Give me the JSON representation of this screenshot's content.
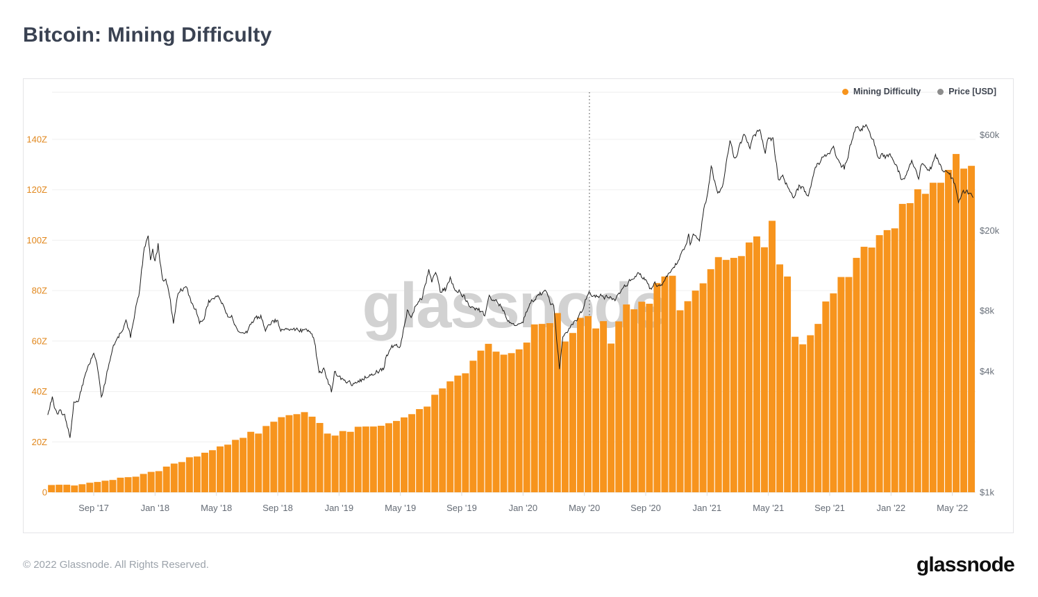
{
  "header": {
    "title": "Bitcoin: Mining Difficulty"
  },
  "legend": {
    "items": [
      {
        "id": "mining-difficulty",
        "label": "Mining Difficulty",
        "color": "#F7941D"
      },
      {
        "id": "price-usd",
        "label": "Price [USD]",
        "color": "#8C8C8C"
      }
    ]
  },
  "watermark": {
    "text": "glassnode",
    "color": "#D2D2D2"
  },
  "footer": {
    "copyright": "© 2022 Glassnode. All Rights Reserved.",
    "brand": "glassnode"
  },
  "chart_data": {
    "type": "combo",
    "title": "Bitcoin: Mining Difficulty",
    "grid": true,
    "legend_position": "top-right",
    "x_axis": {
      "start": "2017-06-01",
      "end": "2022-06-12",
      "tick_labels": [
        "Sep '17",
        "Jan '18",
        "May '18",
        "Sep '18",
        "Jan '19",
        "May '19",
        "Sep '19",
        "Jan '20",
        "May '20",
        "Sep '20",
        "Jan '21",
        "May '21",
        "Sep '21",
        "Jan '22",
        "May '22"
      ],
      "tick_month_offsets": [
        3,
        7,
        11,
        15,
        19,
        23,
        27,
        31,
        35,
        39,
        43,
        47,
        51,
        55,
        59
      ]
    },
    "y_left_axis": {
      "series": "Mining Difficulty",
      "unit": "Z",
      "tick_values": [
        0,
        20,
        40,
        60,
        80,
        100,
        120,
        140
      ],
      "tick_labels": [
        "0",
        "20Z",
        "40Z",
        "60Z",
        "80Z",
        "100Z",
        "120Z",
        "140Z"
      ],
      "range_z": [
        0,
        158
      ],
      "label_color": "#E1871C"
    },
    "y_right_axis": {
      "series": "Price [USD]",
      "scale": "log",
      "tick_values": [
        1000,
        4000,
        8000,
        20000,
        60000
      ],
      "tick_labels": [
        "$1k",
        "$4k",
        "$8k",
        "$20k",
        "$60k"
      ],
      "label_color": "#69707A"
    },
    "annotations": {
      "halving_line": {
        "month_offset": 35.33,
        "date": "2020-05-11",
        "style": "dotted-vertical"
      }
    },
    "series": [
      {
        "name": "Mining Difficulty",
        "type": "bar",
        "axis": "left",
        "unit": "Z",
        "color": "#F7941D",
        "cadence": "semi-monthly from 2017-06-01",
        "values": [
          2.9,
          3.0,
          3.0,
          2.7,
          3.2,
          3.8,
          4.1,
          4.6,
          4.9,
          5.8,
          6.0,
          6.2,
          7.3,
          8.1,
          8.4,
          10.2,
          11.4,
          12.0,
          13.9,
          14.2,
          15.7,
          16.7,
          18.2,
          18.9,
          20.8,
          21.6,
          24.0,
          23.3,
          26.3,
          28.0,
          29.8,
          30.6,
          31.0,
          31.8,
          30.0,
          27.5,
          23.3,
          22.5,
          24.3,
          24.0,
          26.0,
          26.1,
          26.1,
          26.4,
          27.4,
          28.3,
          29.7,
          31.0,
          33.0,
          34.0,
          38.7,
          41.2,
          44.0,
          46.3,
          47.2,
          52.2,
          56.2,
          58.9,
          55.8,
          54.6,
          55.2,
          56.7,
          59.4,
          66.6,
          66.8,
          67.1,
          71.1,
          59.8,
          63.2,
          69.2,
          69.9,
          65.0,
          67.9,
          59.0,
          67.8,
          74.5,
          72.6,
          75.6,
          74.8,
          83.0,
          85.6,
          85.9,
          72.2,
          75.8,
          80.0,
          82.9,
          88.5,
          93.3,
          92.2,
          93.0,
          93.7,
          99.1,
          101.5,
          97.2,
          107.7,
          90.4,
          85.6,
          61.7,
          58.7,
          62.3,
          66.8,
          75.7,
          78.9,
          85.4,
          85.4,
          93.0,
          97.4,
          97.1,
          102.0,
          104.0,
          104.7,
          114.4,
          114.7,
          120.2,
          118.4,
          122.8,
          122.8,
          127.9,
          134.2,
          128.4,
          129.5
        ]
      },
      {
        "name": "Price [USD]",
        "type": "line",
        "axis": "right-log",
        "unit": "USD",
        "color": "#1B1B1B",
        "points": [
          [
            0,
            2400
          ],
          [
            0.3,
            2950
          ],
          [
            0.5,
            2550
          ],
          [
            0.8,
            2500
          ],
          [
            1.1,
            2400
          ],
          [
            1.45,
            1900
          ],
          [
            1.7,
            2750
          ],
          [
            2.0,
            2850
          ],
          [
            2.3,
            3500
          ],
          [
            2.6,
            4100
          ],
          [
            3.0,
            4900
          ],
          [
            3.2,
            4350
          ],
          [
            3.5,
            3000
          ],
          [
            3.8,
            3650
          ],
          [
            4.0,
            4350
          ],
          [
            4.4,
            5600
          ],
          [
            4.8,
            6200
          ],
          [
            5.1,
            7100
          ],
          [
            5.4,
            5900
          ],
          [
            5.7,
            8000
          ],
          [
            6.0,
            10200
          ],
          [
            6.3,
            16700
          ],
          [
            6.55,
            19400
          ],
          [
            6.7,
            14300
          ],
          [
            6.85,
            16200
          ],
          [
            7.0,
            13900
          ],
          [
            7.2,
            16900
          ],
          [
            7.5,
            11100
          ],
          [
            7.7,
            11700
          ],
          [
            8.0,
            9000
          ],
          [
            8.2,
            6900
          ],
          [
            8.5,
            9800
          ],
          [
            8.8,
            10400
          ],
          [
            9.0,
            10900
          ],
          [
            9.3,
            9000
          ],
          [
            9.6,
            8200
          ],
          [
            9.9,
            7000
          ],
          [
            10.2,
            7400
          ],
          [
            10.5,
            8900
          ],
          [
            10.8,
            9300
          ],
          [
            11.1,
            9200
          ],
          [
            11.4,
            8500
          ],
          [
            11.8,
            7400
          ],
          [
            12.0,
            7550
          ],
          [
            12.3,
            6500
          ],
          [
            12.7,
            6100
          ],
          [
            13.0,
            6350
          ],
          [
            13.5,
            7400
          ],
          [
            13.9,
            7500
          ],
          [
            14.2,
            6400
          ],
          [
            14.6,
            7000
          ],
          [
            15.0,
            7200
          ],
          [
            15.2,
            6300
          ],
          [
            15.6,
            6500
          ],
          [
            16.0,
            6550
          ],
          [
            16.5,
            6450
          ],
          [
            17.0,
            6350
          ],
          [
            17.4,
            5700
          ],
          [
            17.7,
            3900
          ],
          [
            18.0,
            4100
          ],
          [
            18.5,
            3200
          ],
          [
            18.7,
            3900
          ],
          [
            19.0,
            3750
          ],
          [
            19.5,
            3550
          ],
          [
            20.0,
            3450
          ],
          [
            20.5,
            3650
          ],
          [
            21.0,
            3850
          ],
          [
            21.5,
            3980
          ],
          [
            21.9,
            4100
          ],
          [
            22.1,
            4900
          ],
          [
            22.5,
            5250
          ],
          [
            23.0,
            5350
          ],
          [
            23.45,
            7950
          ],
          [
            23.7,
            7300
          ],
          [
            24.0,
            8550
          ],
          [
            24.4,
            9200
          ],
          [
            24.85,
            12900
          ],
          [
            25.05,
            11200
          ],
          [
            25.3,
            12500
          ],
          [
            25.6,
            10000
          ],
          [
            26.0,
            10300
          ],
          [
            26.25,
            11900
          ],
          [
            26.6,
            10100
          ],
          [
            27.0,
            9700
          ],
          [
            27.7,
            8200
          ],
          [
            28.0,
            8300
          ],
          [
            28.5,
            7600
          ],
          [
            28.8,
            9450
          ],
          [
            29.0,
            9150
          ],
          [
            29.5,
            8550
          ],
          [
            30.0,
            7300
          ],
          [
            30.5,
            6700
          ],
          [
            31.0,
            7200
          ],
          [
            31.5,
            8750
          ],
          [
            32.0,
            9350
          ],
          [
            32.4,
            10300
          ],
          [
            32.8,
            8800
          ],
          [
            33.0,
            8600
          ],
          [
            33.37,
            4100
          ],
          [
            33.6,
            5900
          ],
          [
            34.0,
            6450
          ],
          [
            34.5,
            7100
          ],
          [
            35.0,
            8650
          ],
          [
            35.3,
            9850
          ],
          [
            35.6,
            9300
          ],
          [
            36.0,
            9600
          ],
          [
            36.5,
            9350
          ],
          [
            37.0,
            9150
          ],
          [
            37.8,
            10900
          ],
          [
            38.0,
            11300
          ],
          [
            38.55,
            12200
          ],
          [
            39.0,
            11650
          ],
          [
            39.25,
            10300
          ],
          [
            39.6,
            10800
          ],
          [
            40.0,
            10650
          ],
          [
            40.7,
            12900
          ],
          [
            41.0,
            13800
          ],
          [
            41.5,
            16200
          ],
          [
            41.8,
            19000
          ],
          [
            41.9,
            17200
          ],
          [
            42.1,
            19300
          ],
          [
            42.5,
            18100
          ],
          [
            42.85,
            26500
          ],
          [
            43.0,
            29000
          ],
          [
            43.27,
            41200
          ],
          [
            43.5,
            35500
          ],
          [
            43.7,
            31000
          ],
          [
            44.0,
            33500
          ],
          [
            44.5,
            56300
          ],
          [
            44.8,
            45500
          ],
          [
            45.0,
            49600
          ],
          [
            45.4,
            61000
          ],
          [
            45.8,
            51800
          ],
          [
            46.0,
            58800
          ],
          [
            46.45,
            63500
          ],
          [
            46.8,
            49500
          ],
          [
            47.0,
            57800
          ],
          [
            47.3,
            57500
          ],
          [
            47.65,
            36800
          ],
          [
            48.0,
            36700
          ],
          [
            48.7,
            29200
          ],
          [
            49.0,
            33500
          ],
          [
            49.6,
            30000
          ],
          [
            50.0,
            39900
          ],
          [
            50.5,
            46000
          ],
          [
            51.0,
            48800
          ],
          [
            51.25,
            52500
          ],
          [
            51.45,
            44800
          ],
          [
            51.7,
            42800
          ],
          [
            51.95,
            41200
          ],
          [
            52.2,
            47500
          ],
          [
            52.7,
            66600
          ],
          [
            53.0,
            61300
          ],
          [
            53.3,
            68400
          ],
          [
            53.8,
            57200
          ],
          [
            54.1,
            47500
          ],
          [
            54.5,
            46900
          ],
          [
            55.0,
            47100
          ],
          [
            55.4,
            41700
          ],
          [
            55.7,
            35200
          ],
          [
            56.0,
            38500
          ],
          [
            56.35,
            44300
          ],
          [
            56.8,
            35800
          ],
          [
            57.0,
            43200
          ],
          [
            57.5,
            39200
          ],
          [
            57.9,
            47200
          ],
          [
            58.4,
            40000
          ],
          [
            58.8,
            38800
          ],
          [
            59.15,
            34000
          ],
          [
            59.4,
            27800
          ],
          [
            59.6,
            30300
          ],
          [
            59.9,
            31700
          ],
          [
            60.15,
            29800
          ],
          [
            60.35,
            29200
          ]
        ]
      }
    ]
  }
}
